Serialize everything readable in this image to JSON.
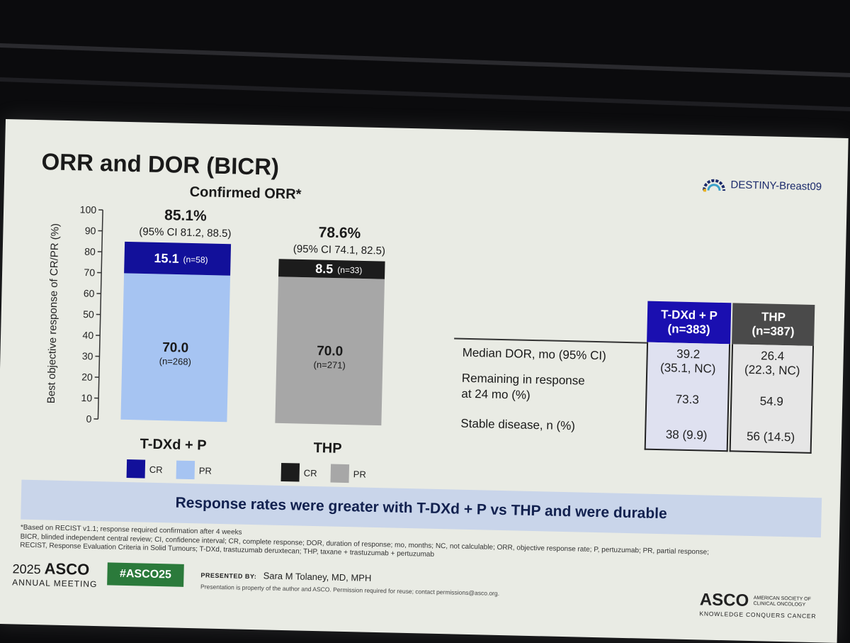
{
  "slide": {
    "title": "ORR and DOR (BICR)",
    "logo_text": "DESTINY-Breast09",
    "banner": "Response rates were greater with T-DXd + P vs THP and were durable",
    "footnotes": [
      "*Based on RECIST v1.1; response required confirmation after 4 weeks",
      "BICR, blinded independent central review; CI, confidence interval; CR, complete response; DOR, duration of response; mo, months; NC, not calculable; ORR, objective response rate; P, pertuzumab; PR, partial response;",
      "RECIST, Response Evaluation Criteria in Solid Tumours; T-DXd, trastuzumab deruxtecan; THP, taxane + trastuzumab + pertuzumab"
    ],
    "asco_year": "2025",
    "asco_name": "ASCO",
    "asco_meeting": "ANNUAL MEETING",
    "hashtag": "#ASCO25",
    "presented_by_label": "PRESENTED BY:",
    "presenter": "Sara M Tolaney, MD, MPH",
    "property_notice": "Presentation is property of the author and ASCO. Permission required for reuse; contact permissions@asco.org.",
    "asco_right_name": "ASCO",
    "asco_right_side": [
      "AMERICAN SOCIETY OF",
      "CLINICAL ONCOLOGY"
    ],
    "asco_right_tagline": "KNOWLEDGE CONQUERS CANCER"
  },
  "chart_data": {
    "type": "bar",
    "stacked": true,
    "title": "Confirmed ORR*",
    "ylabel": "Best objective response of CR/PR (%)",
    "ylim": [
      0,
      100
    ],
    "yticks": [
      0,
      10,
      20,
      30,
      40,
      50,
      60,
      70,
      80,
      90,
      100
    ],
    "categories": [
      "T-DXd + P",
      "THP"
    ],
    "groups": [
      {
        "name": "T-DXd + P",
        "total": "85.1%",
        "ci": "(95% CI 81.2, 88.5)",
        "cr": {
          "value": 15.1,
          "label": "15.1",
          "n": "(n=58)",
          "color": "#12109a"
        },
        "pr": {
          "value": 70.0,
          "label": "70.0",
          "n": "(n=268)",
          "color": "#a6c4f2"
        },
        "legend": [
          {
            "label": "CR",
            "color": "#12109a"
          },
          {
            "label": "PR",
            "color": "#a6c4f2"
          }
        ]
      },
      {
        "name": "THP",
        "total": "78.6%",
        "ci": "(95% CI 74.1, 82.5)",
        "cr": {
          "value": 8.5,
          "label": "8.5",
          "n": "(n=33)",
          "color": "#1c1c1c"
        },
        "pr": {
          "value": 70.0,
          "label": "70.0",
          "n": "(n=271)",
          "color": "#a7a7a7"
        },
        "legend": [
          {
            "label": "CR",
            "color": "#1c1c1c"
          },
          {
            "label": "PR",
            "color": "#a7a7a7"
          }
        ]
      }
    ]
  },
  "dor_table": {
    "headers": [
      {
        "line1": "T-DXd + P",
        "line2": "(n=383)"
      },
      {
        "line1": "THP",
        "line2": "(n=387)"
      }
    ],
    "rows": [
      {
        "label": "Median DOR, mo (95% CI)",
        "v1": [
          "39.2",
          "(35.1, NC)"
        ],
        "v2": [
          "26.4",
          "(22.3, NC)"
        ]
      },
      {
        "label_lines": [
          "Remaining in response",
          "at 24 mo (%)"
        ],
        "v1": [
          "73.3"
        ],
        "v2": [
          "54.9"
        ]
      },
      {
        "label": "Stable disease, n (%)",
        "v1": [
          "38 (9.9)"
        ],
        "v2": [
          "56 (14.5)"
        ]
      }
    ]
  }
}
